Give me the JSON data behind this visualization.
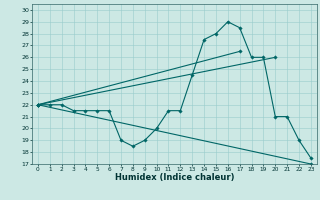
{
  "title": "",
  "xlabel": "Humidex (Indice chaleur)",
  "bg_color": "#cce8e4",
  "grid_color": "#99cccc",
  "line_color": "#006666",
  "xlim": [
    -0.5,
    23.5
  ],
  "ylim": [
    17,
    30.5
  ],
  "yticks": [
    17,
    18,
    19,
    20,
    21,
    22,
    23,
    24,
    25,
    26,
    27,
    28,
    29,
    30
  ],
  "xticks": [
    0,
    1,
    2,
    3,
    4,
    5,
    6,
    7,
    8,
    9,
    10,
    11,
    12,
    13,
    14,
    15,
    16,
    17,
    18,
    19,
    20,
    21,
    22,
    23
  ],
  "series1_x": [
    0,
    1,
    2,
    3,
    4,
    5,
    6,
    7,
    8,
    9,
    10,
    11,
    12,
    13,
    14,
    15,
    16,
    17,
    18,
    19,
    20,
    21,
    22,
    23
  ],
  "series1_y": [
    22,
    22,
    22,
    21.5,
    21.5,
    21.5,
    21.5,
    19,
    18.5,
    19,
    20,
    21.5,
    21.5,
    24.5,
    27.5,
    28,
    29,
    28.5,
    26,
    26,
    21,
    21,
    19,
    17.5
  ],
  "series2_x": [
    0,
    23
  ],
  "series2_y": [
    22,
    17
  ],
  "series3_x": [
    0,
    20
  ],
  "series3_y": [
    22,
    26
  ],
  "series4_x": [
    0,
    17
  ],
  "series4_y": [
    22,
    26.5
  ]
}
